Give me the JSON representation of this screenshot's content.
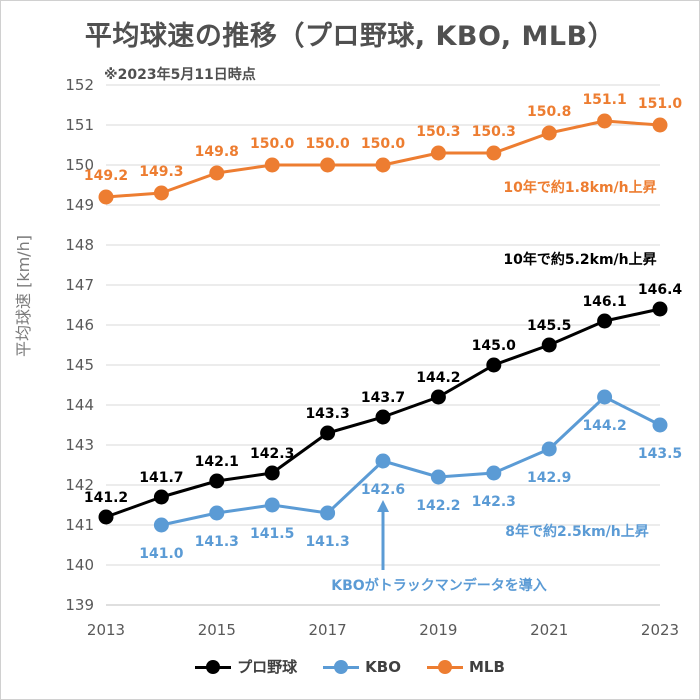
{
  "title": "平均球速の推移（プロ野球, KBO, MLB）",
  "note": "※2023年5月11日時点",
  "colors": {
    "npb": "#000000",
    "kbo": "#5b9bd5",
    "mlb": "#ed7d31",
    "grid": "#d9d9d9"
  },
  "chart_data": {
    "type": "line",
    "title": "平均球速の推移（プロ野球, KBO, MLB）",
    "ylabel": "平均球速 [km/h]",
    "xlabel": "",
    "ylim": [
      139,
      152
    ],
    "xlim": [
      2013,
      2023
    ],
    "yticks": [
      "139",
      "140",
      "141",
      "142",
      "143",
      "144",
      "145",
      "146",
      "147",
      "148",
      "149",
      "150",
      "151",
      "152"
    ],
    "xticks": [
      "2013",
      "2015",
      "2017",
      "2019",
      "2021",
      "2023"
    ],
    "grid": true,
    "legend_position": "bottom",
    "series": [
      {
        "name": "プロ野球",
        "key": "npb",
        "x": [
          2013,
          2014,
          2015,
          2016,
          2017,
          2018,
          2019,
          2020,
          2021,
          2022,
          2023
        ],
        "values": [
          141.2,
          141.7,
          142.1,
          142.3,
          143.3,
          143.7,
          144.2,
          145.0,
          145.5,
          146.1,
          146.4
        ],
        "labels": [
          "141.2",
          "141.7",
          "142.1",
          "142.3",
          "143.3",
          "143.7",
          "144.2",
          "145.0",
          "145.5",
          "146.1",
          "146.4"
        ]
      },
      {
        "name": "KBO",
        "key": "kbo",
        "x": [
          2014,
          2015,
          2016,
          2017,
          2018,
          2019,
          2020,
          2021,
          2022,
          2023
        ],
        "values": [
          141.0,
          141.3,
          141.5,
          141.3,
          142.6,
          142.2,
          142.3,
          142.9,
          144.2,
          143.5
        ],
        "labels": [
          "141.0",
          "141.3",
          "141.5",
          "141.3",
          "142.6",
          "142.2",
          "142.3",
          "142.9",
          "144.2",
          "143.5"
        ]
      },
      {
        "name": "MLB",
        "key": "mlb",
        "x": [
          2013,
          2014,
          2015,
          2016,
          2017,
          2018,
          2019,
          2020,
          2021,
          2022,
          2023
        ],
        "values": [
          149.2,
          149.3,
          149.8,
          150.0,
          150.0,
          150.0,
          150.3,
          150.3,
          150.8,
          151.1,
          151.0
        ],
        "labels": [
          "149.2",
          "149.3",
          "149.8",
          "150.0",
          "150.0",
          "150.0",
          "150.3",
          "150.3",
          "150.8",
          "151.1",
          "151.0"
        ]
      }
    ],
    "annotations": {
      "mlb_trend": "10年で約1.8km/h上昇",
      "npb_trend": "10年で約5.2km/h上昇",
      "kbo_trend": "8年で約2.5km/h上昇",
      "kbo_event": "KBOがトラックマンデータを導入",
      "kbo_event_year": 2018
    }
  },
  "legend": [
    {
      "label": "プロ野球",
      "key": "npb"
    },
    {
      "label": "KBO",
      "key": "kbo"
    },
    {
      "label": "MLB",
      "key": "mlb"
    }
  ]
}
